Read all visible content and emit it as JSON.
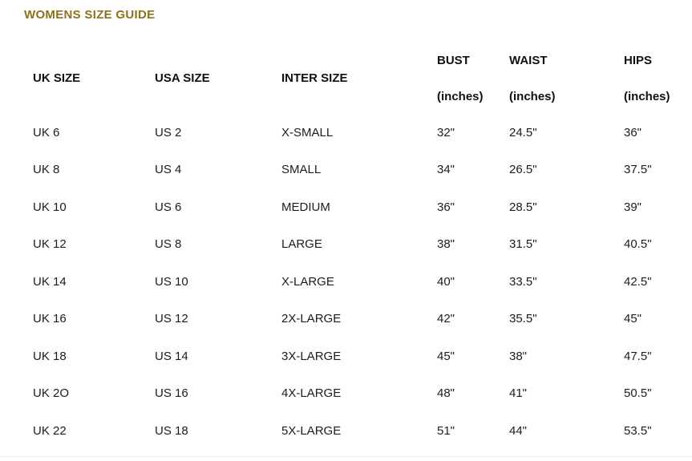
{
  "page": {
    "title": "WOMENS SIZE GUIDE",
    "title_color": "#8b731a"
  },
  "table": {
    "columns": [
      {
        "label": "UK SIZE",
        "sub": ""
      },
      {
        "label": "USA SIZE",
        "sub": ""
      },
      {
        "label": "INTER SIZE",
        "sub": ""
      },
      {
        "label": "BUST",
        "sub": "(inches)"
      },
      {
        "label": "WAIST",
        "sub": "(inches)"
      },
      {
        "label": "HIPS",
        "sub": "(inches)"
      }
    ],
    "rows": [
      [
        "UK 6",
        "US 2",
        "X-SMALL",
        "32\"",
        "24.5\"",
        "36\""
      ],
      [
        "UK 8",
        "US 4",
        "SMALL",
        "34\"",
        "26.5\"",
        "37.5\""
      ],
      [
        "UK 10",
        "US 6",
        "MEDIUM",
        "36\"",
        "28.5\"",
        "39\""
      ],
      [
        "UK 12",
        "US 8",
        "LARGE",
        "38\"",
        "31.5\"",
        "40.5\""
      ],
      [
        "UK 14",
        "US 10",
        "X-LARGE",
        "40\"",
        "33.5\"",
        "42.5\""
      ],
      [
        "UK 16",
        "US 12",
        "2X-LARGE",
        "42\"",
        "35.5\"",
        "45\""
      ],
      [
        "UK 18",
        "US 14",
        "3X-LARGE",
        "45\"",
        "38\"",
        "47.5\""
      ],
      [
        "UK 2O",
        "US 16",
        "4X-LARGE",
        "48\"",
        "41\"",
        "50.5\""
      ],
      [
        "UK 22",
        "US 18",
        "5X-LARGE",
        "51\"",
        "44\"",
        "53.5\""
      ]
    ]
  }
}
